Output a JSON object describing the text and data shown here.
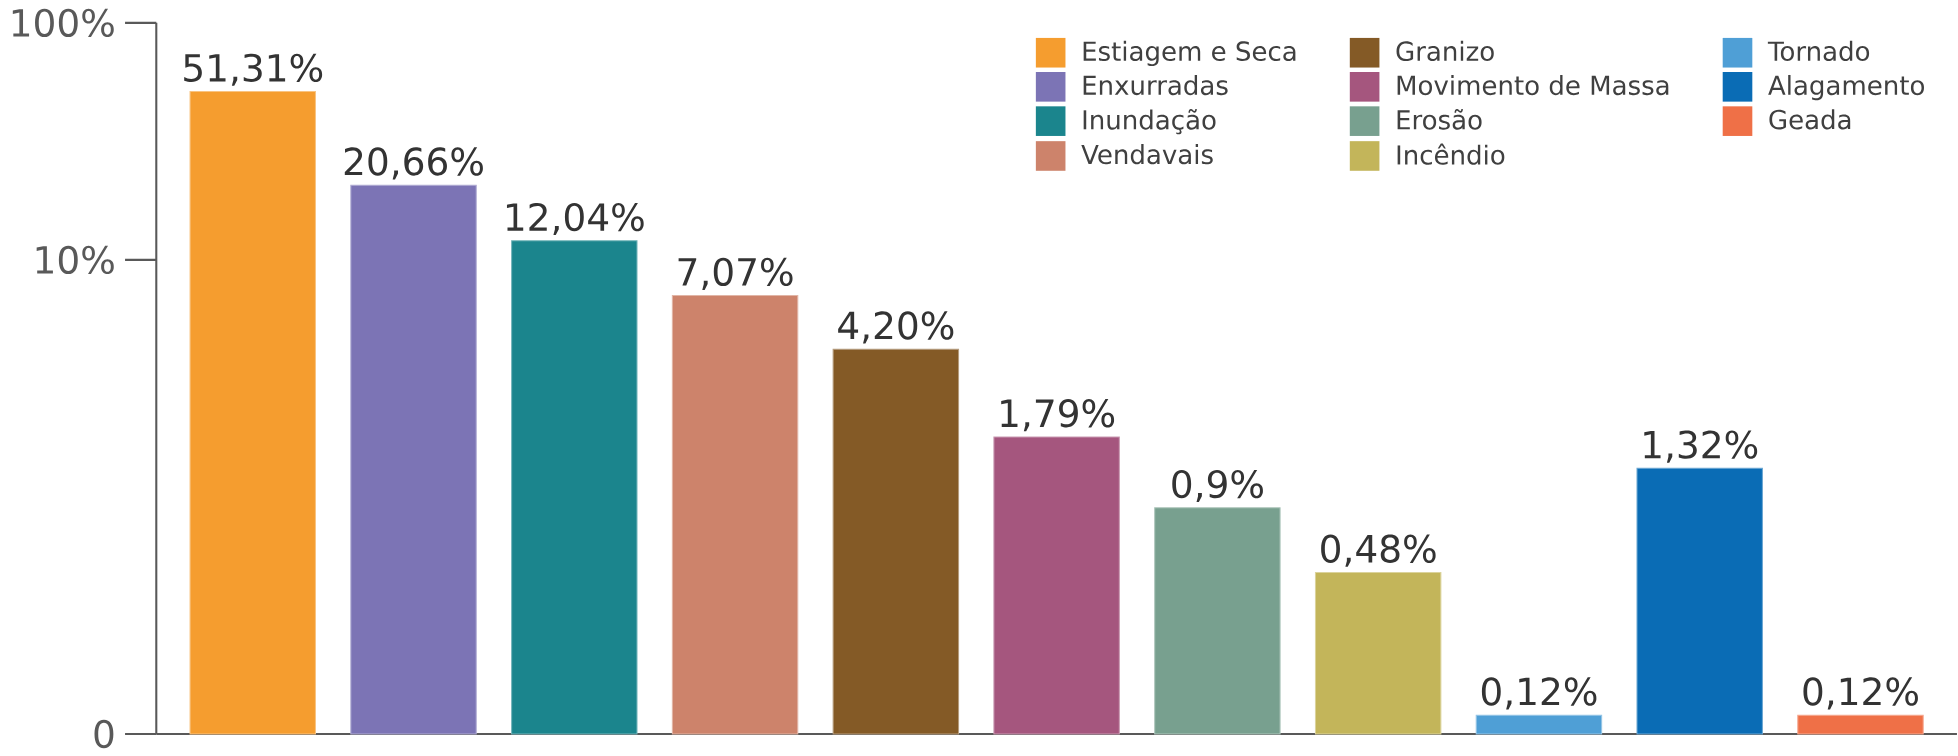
{
  "chart_data": {
    "type": "bar",
    "categories": [
      null,
      null,
      null,
      null,
      null,
      null,
      null,
      null,
      null,
      null,
      null
    ],
    "series": [
      {
        "name": "Estiagem e Seca",
        "color": "#f59d2f",
        "values": [
          51.31,
          null,
          null,
          null,
          null,
          null,
          null,
          null,
          null,
          null,
          null
        ],
        "value_labels": [
          "51,31%",
          null,
          null,
          null,
          null,
          null,
          null,
          null,
          null,
          null,
          null
        ]
      },
      {
        "name": "Enxurradas",
        "color": "#7c74b5",
        "values": [
          null,
          20.66,
          null,
          null,
          null,
          null,
          null,
          null,
          null,
          null,
          null
        ],
        "value_labels": [
          null,
          "20,66%",
          null,
          null,
          null,
          null,
          null,
          null,
          null,
          null,
          null
        ]
      },
      {
        "name": "Inundação",
        "color": "#1b858d",
        "values": [
          null,
          null,
          12.04,
          null,
          null,
          null,
          null,
          null,
          null,
          null,
          null
        ],
        "value_labels": [
          null,
          null,
          "12,04%",
          null,
          null,
          null,
          null,
          null,
          null,
          null,
          null
        ]
      },
      {
        "name": "Vendavais",
        "color": "#cd836b",
        "values": [
          null,
          null,
          null,
          7.07,
          null,
          null,
          null,
          null,
          null,
          null,
          null
        ],
        "value_labels": [
          null,
          null,
          null,
          "7,07%",
          null,
          null,
          null,
          null,
          null,
          null,
          null
        ]
      },
      {
        "name": "Granizo",
        "color": "#845a26",
        "values": [
          null,
          null,
          null,
          null,
          4.2,
          null,
          null,
          null,
          null,
          null,
          null
        ],
        "value_labels": [
          null,
          null,
          null,
          null,
          "4,20%",
          null,
          null,
          null,
          null,
          null,
          null
        ]
      },
      {
        "name": "Movimento de Massa",
        "color": "#a5567e",
        "values": [
          null,
          null,
          null,
          null,
          null,
          1.79,
          null,
          null,
          null,
          null,
          null
        ],
        "value_labels": [
          null,
          null,
          null,
          null,
          null,
          "1,79%",
          null,
          null,
          null,
          null,
          null
        ]
      },
      {
        "name": "Erosão",
        "color": "#78a08f",
        "values": [
          null,
          null,
          null,
          null,
          null,
          null,
          0.9,
          null,
          null,
          null,
          null
        ],
        "value_labels": [
          null,
          null,
          null,
          null,
          null,
          null,
          "0,9%",
          null,
          null,
          null,
          null
        ]
      },
      {
        "name": "Incêndio",
        "color": "#c3b55a",
        "values": [
          null,
          null,
          null,
          null,
          null,
          null,
          null,
          0.48,
          null,
          null,
          null
        ],
        "value_labels": [
          null,
          null,
          null,
          null,
          null,
          null,
          null,
          "0,48%",
          null,
          null,
          null
        ]
      },
      {
        "name": "Tornado",
        "color": "#4f9fd6",
        "values": [
          null,
          null,
          null,
          null,
          null,
          null,
          null,
          null,
          0.12,
          null,
          null
        ],
        "value_labels": [
          null,
          null,
          null,
          null,
          null,
          null,
          null,
          null,
          "0,12%",
          null,
          null
        ]
      },
      {
        "name": "Alagamento",
        "color": "#0a6cb5",
        "values": [
          null,
          null,
          null,
          null,
          null,
          null,
          null,
          null,
          null,
          1.32,
          null
        ],
        "value_labels": [
          null,
          null,
          null,
          null,
          null,
          null,
          null,
          null,
          null,
          "1,32%",
          null
        ]
      },
      {
        "name": "Geada",
        "color": "#ef7047",
        "values": [
          null,
          null,
          null,
          null,
          null,
          null,
          null,
          null,
          null,
          null,
          0.12
        ],
        "value_labels": [
          null,
          null,
          null,
          null,
          null,
          null,
          null,
          null,
          null,
          null,
          "0,12%"
        ]
      }
    ],
    "log": "y",
    "ylim": [
      0.1,
      100
    ],
    "yticks": [
      {
        "value": 0.1,
        "label": "0"
      },
      {
        "value": 10,
        "label": "10%"
      },
      {
        "value": 100,
        "label": "100%"
      }
    ],
    "legend": "top right",
    "grid": false
  }
}
